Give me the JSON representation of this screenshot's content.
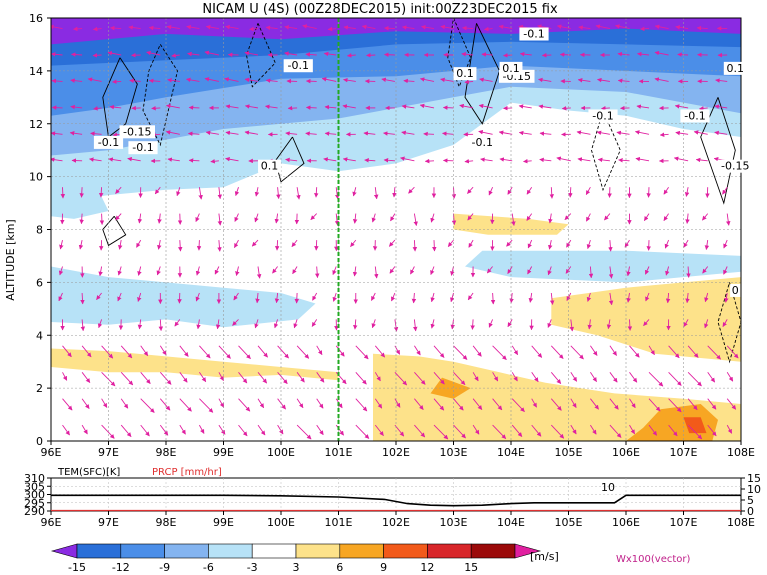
{
  "title": "NICAM U (4S) (00Z28DEC2015) init:00Z23DEC2015 fix",
  "chart_data": [
    {
      "type": "heatmap",
      "title": "NICAM U (4S) (00Z28DEC2015) init:00Z23DEC2015 fix",
      "ylabel": "ALTITUDE [km]",
      "xlabel": "",
      "x_ticks": [
        "96E",
        "97E",
        "98E",
        "99E",
        "100E",
        "101E",
        "102E",
        "103E",
        "104E",
        "105E",
        "106E",
        "107E",
        "108E"
      ],
      "y_ticks": [
        "0",
        "2",
        "4",
        "6",
        "8",
        "10",
        "12",
        "14",
        "16"
      ],
      "xlim": [
        96,
        108
      ],
      "ylim": [
        0,
        16
      ],
      "grid": true,
      "marker_line_lon": 101,
      "contour_labels": [
        "-0.1",
        "0.1",
        "-0.15",
        "-0.1",
        "-0.1",
        "-0.15",
        "-0.1",
        "0.1",
        "-0.1",
        "-0.1",
        "0.1",
        "-0.1",
        "-0.15",
        "0.1",
        "0"
      ],
      "colorbar": {
        "levels": [
          "-15",
          "-12",
          "-9",
          "-6",
          "-3",
          "3",
          "6",
          "9",
          "12",
          "15"
        ],
        "units": "[m/s]",
        "colors": [
          "#8a2be2",
          "#2a6fd8",
          "#4b8ee8",
          "#84b4f0",
          "#b7e2f7",
          "#ffffff",
          "#fde28a",
          "#f7a623",
          "#f25a1a",
          "#d8262a",
          "#9b0a0a",
          "#e020a0"
        ]
      },
      "vector_label": "Wx100(vector)"
    },
    {
      "type": "line",
      "title": "",
      "series": [
        {
          "name": "TEM(SFC)[K]",
          "color": "#000000",
          "x": [
            96,
            97,
            98,
            99,
            100,
            101,
            101.8,
            102.2,
            102.6,
            103,
            103.5,
            104,
            104.4,
            105,
            105.8,
            106,
            106.5,
            107,
            108
          ],
          "values": [
            299.5,
            299.5,
            299.5,
            299.5,
            299.2,
            298.5,
            297,
            294.5,
            293.5,
            293.2,
            293.5,
            294.5,
            295,
            295,
            295,
            299.5,
            299.5,
            299.5,
            299.5
          ]
        },
        {
          "name": "PRCP [mm/hr]",
          "color": "#e03030",
          "x": [
            96,
            108
          ],
          "values": [
            0,
            0
          ]
        }
      ],
      "left_ticks": [
        "310",
        "305",
        "300",
        "295",
        "290"
      ],
      "right_ticks": [
        "15",
        "10",
        "5",
        "0"
      ],
      "x_ticks": [
        "96E",
        "97E",
        "98E",
        "99E",
        "100E",
        "101E",
        "102E",
        "103E",
        "104E",
        "105E",
        "106E",
        "107E",
        "108E"
      ],
      "annotation": "10"
    }
  ]
}
